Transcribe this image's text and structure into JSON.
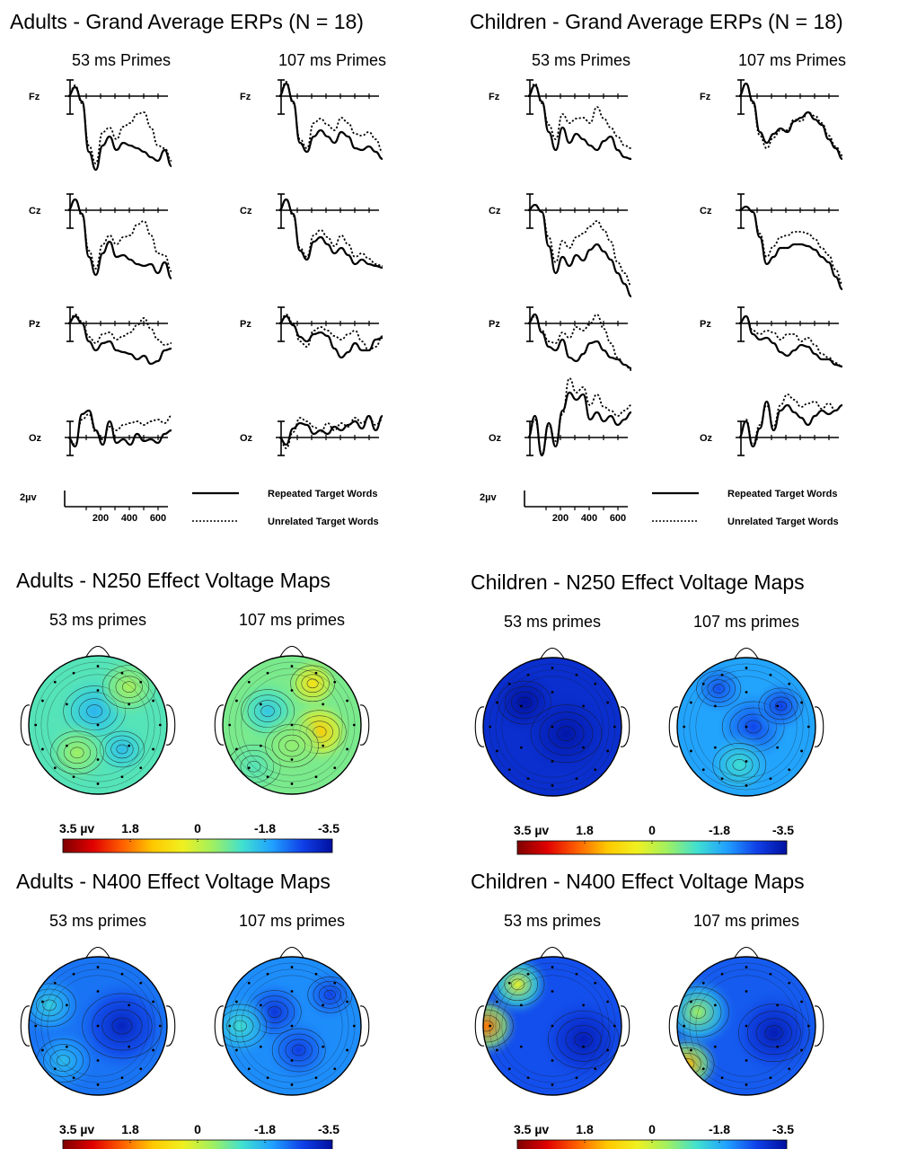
{
  "colors": {
    "scale_stops": [
      "#7f0000",
      "#e00000",
      "#ff6000",
      "#ffc800",
      "#f0f020",
      "#a0f060",
      "#40e0d0",
      "#20a0ff",
      "#1040e8",
      "#0010a0"
    ],
    "line": "#000000",
    "contour": "#1a1a1a"
  },
  "legend": {
    "repeated_label": "Repeated Target Words",
    "unrelated_label": "Unrelated Target Words",
    "amplitude_label": "2µv",
    "time_ticks": [
      "200",
      "400",
      "600"
    ]
  },
  "colorbar": {
    "labels": [
      "3.5 µv",
      "1.8",
      "0",
      "-1.8",
      "-3.5"
    ]
  },
  "chart_data": [
    {
      "type": "line",
      "group": "adults-erp",
      "title": "Adults - Grand Average ERPs (N = 18)",
      "panels": [
        {
          "title": "53 ms Primes",
          "electrodes": [
            {
              "name": "Fz",
              "repeated": [
                0,
                10,
                -6,
                -62,
                -82,
                -55,
                -45,
                -60,
                -52,
                -55,
                -58,
                -62,
                -68,
                -72,
                -60,
                -78
              ],
              "unrelated": [
                0,
                12,
                -8,
                -55,
                -75,
                -40,
                -35,
                -48,
                -34,
                -30,
                -20,
                -18,
                -35,
                -55,
                -58,
                -72
              ]
            },
            {
              "name": "Cz",
              "repeated": [
                0,
                12,
                -4,
                -52,
                -72,
                -48,
                -35,
                -52,
                -50,
                -55,
                -60,
                -62,
                -60,
                -70,
                -58,
                -76
              ],
              "unrelated": [
                0,
                12,
                -6,
                -45,
                -65,
                -38,
                -28,
                -38,
                -30,
                -28,
                -16,
                -12,
                -28,
                -48,
                -50,
                -68
              ]
            },
            {
              "name": "Pz",
              "repeated": [
                0,
                8,
                0,
                -20,
                -30,
                -22,
                -20,
                -30,
                -32,
                -34,
                -40,
                -36,
                -45,
                -42,
                -30,
                -28
              ],
              "unrelated": [
                0,
                10,
                2,
                -15,
                -22,
                -12,
                -10,
                -18,
                -14,
                -10,
                -2,
                6,
                -6,
                -18,
                -24,
                -22
              ]
            },
            {
              "name": "Oz",
              "repeated": [
                0,
                -10,
                26,
                30,
                8,
                -8,
                18,
                -6,
                -2,
                -8,
                4,
                -4,
                -2,
                -6,
                4,
                8
              ],
              "unrelated": [
                0,
                -8,
                20,
                26,
                6,
                -2,
                12,
                8,
                14,
                16,
                18,
                14,
                18,
                20,
                16,
                24
              ]
            }
          ]
        },
        {
          "title": "107 ms Primes",
          "electrodes": [
            {
              "name": "Fz",
              "repeated": [
                0,
                14,
                -6,
                -52,
                -62,
                -45,
                -38,
                -45,
                -52,
                -40,
                -45,
                -58,
                -60,
                -56,
                -62,
                -70
              ],
              "unrelated": [
                0,
                16,
                -8,
                -48,
                -58,
                -30,
                -25,
                -32,
                -38,
                -24,
                -30,
                -42,
                -44,
                -40,
                -48,
                -62
              ]
            },
            {
              "name": "Cz",
              "repeated": [
                0,
                12,
                -4,
                -45,
                -55,
                -35,
                -30,
                -38,
                -48,
                -42,
                -50,
                -60,
                -55,
                -60,
                -62,
                -64
              ],
              "unrelated": [
                0,
                12,
                -6,
                -42,
                -52,
                -28,
                -22,
                -30,
                -40,
                -28,
                -38,
                -52,
                -48,
                -54,
                -60,
                -62
              ]
            },
            {
              "name": "Pz",
              "repeated": [
                0,
                8,
                -2,
                -15,
                -20,
                -12,
                -10,
                -14,
                -28,
                -38,
                -32,
                -22,
                -30,
                -30,
                -18,
                -16
              ],
              "unrelated": [
                0,
                10,
                0,
                -20,
                -26,
                -8,
                -4,
                -8,
                -14,
                -18,
                -12,
                -8,
                -20,
                -30,
                -26,
                -14
              ]
            },
            {
              "name": "Oz",
              "repeated": [
                0,
                -8,
                10,
                16,
                14,
                4,
                8,
                4,
                12,
                8,
                14,
                18,
                10,
                24,
                8,
                24
              ],
              "unrelated": [
                0,
                -12,
                6,
                22,
                18,
                12,
                6,
                16,
                8,
                16,
                12,
                22,
                16,
                22,
                14,
                20
              ]
            }
          ]
        }
      ]
    },
    {
      "type": "line",
      "group": "children-erp",
      "title": "Children - Grand Average ERPs (N = 18)",
      "panels": [
        {
          "title": "53 ms Primes",
          "electrodes": [
            {
              "name": "Fz",
              "repeated": [
                0,
                12,
                -6,
                -40,
                -60,
                -35,
                -52,
                -42,
                -48,
                -55,
                -60,
                -50,
                -45,
                -60,
                -68,
                -70
              ],
              "unrelated": [
                0,
                14,
                -8,
                -32,
                -48,
                -20,
                -30,
                -25,
                -24,
                -30,
                -12,
                -25,
                -35,
                -45,
                -55,
                -58
              ]
            },
            {
              "name": "Cz",
              "repeated": [
                0,
                6,
                -2,
                -40,
                -70,
                -52,
                -62,
                -50,
                -56,
                -44,
                -38,
                -46,
                -55,
                -70,
                -82,
                -96
              ],
              "unrelated": [
                0,
                6,
                -2,
                -30,
                -58,
                -34,
                -42,
                -30,
                -26,
                -18,
                -12,
                -22,
                -35,
                -58,
                -70,
                -84
              ]
            },
            {
              "name": "Pz",
              "repeated": [
                0,
                10,
                -10,
                -26,
                -30,
                -18,
                -38,
                -42,
                -34,
                -22,
                -20,
                -30,
                -38,
                -40,
                -46,
                -50
              ],
              "unrelated": [
                0,
                8,
                -8,
                -20,
                -22,
                -10,
                -16,
                -4,
                -8,
                0,
                10,
                -6,
                -22,
                -38,
                -46,
                -52
              ]
            },
            {
              "name": "Oz",
              "repeated": [
                0,
                24,
                -20,
                16,
                -10,
                30,
                50,
                42,
                48,
                20,
                28,
                18,
                24,
                14,
                20,
                28
              ],
              "unrelated": [
                0,
                20,
                -18,
                14,
                -4,
                26,
                66,
                50,
                56,
                36,
                48,
                34,
                30,
                24,
                30,
                36
              ]
            }
          ]
        },
        {
          "title": "107 ms Primes",
          "electrodes": [
            {
              "name": "Fz",
              "repeated": [
                0,
                14,
                -6,
                -40,
                -52,
                -42,
                -36,
                -40,
                -28,
                -24,
                -18,
                -26,
                -32,
                -48,
                -58,
                -70
              ],
              "unrelated": [
                0,
                14,
                -8,
                -44,
                -58,
                -46,
                -38,
                -38,
                -26,
                -28,
                -18,
                -22,
                -30,
                -44,
                -56,
                -66
              ]
            },
            {
              "name": "Cz",
              "repeated": [
                0,
                4,
                -2,
                -30,
                -60,
                -52,
                -42,
                -42,
                -38,
                -38,
                -40,
                -44,
                -52,
                -58,
                -74,
                -88
              ],
              "unrelated": [
                0,
                4,
                -2,
                -26,
                -52,
                -40,
                -30,
                -28,
                -24,
                -24,
                -26,
                -32,
                -42,
                -50,
                -66,
                -82
              ]
            },
            {
              "name": "Pz",
              "repeated": [
                0,
                8,
                -12,
                -18,
                -16,
                -22,
                -32,
                -36,
                -30,
                -24,
                -26,
                -34,
                -40,
                -40,
                -46,
                -48
              ],
              "unrelated": [
                0,
                8,
                -8,
                -12,
                -8,
                -10,
                -18,
                -12,
                -12,
                -20,
                -16,
                -24,
                -34,
                -38,
                -44,
                -48
              ]
            },
            {
              "name": "Oz",
              "repeated": [
                0,
                18,
                -10,
                10,
                40,
                8,
                30,
                36,
                28,
                22,
                14,
                24,
                30,
                26,
                30,
                36
              ],
              "unrelated": [
                0,
                20,
                -8,
                14,
                36,
                12,
                36,
                48,
                42,
                34,
                38,
                40,
                32,
                38,
                30,
                36
              ]
            }
          ]
        }
      ]
    },
    {
      "type": "heatmap",
      "group": "adults-n250",
      "title": "Adults - N250 Effect Voltage Maps",
      "maps": [
        {
          "title": "53 ms primes",
          "base": -1.0,
          "blobs": [
            {
              "u": -0.2,
              "v": -0.05,
              "val": -1.7,
              "r": 0.35
            },
            {
              "u": 0.35,
              "v": 0.35,
              "val": -1.6,
              "r": 0.25
            },
            {
              "u": 0.4,
              "v": -0.3,
              "val": -0.4,
              "r": 0.3
            },
            {
              "u": -0.55,
              "v": 0.45,
              "val": -0.3,
              "r": 0.3
            }
          ]
        },
        {
          "title": "107 ms primes",
          "base": -0.7,
          "blobs": [
            {
              "u": 0.1,
              "v": 0.4,
              "val": 1.1,
              "r": 0.3
            },
            {
              "u": -0.6,
              "v": 0.3,
              "val": 0.7,
              "r": 0.25
            },
            {
              "u": 0.6,
              "v": -0.55,
              "val": -1.0,
              "r": 0.3
            },
            {
              "u": -0.2,
              "v": -0.35,
              "val": -1.5,
              "r": 0.3
            },
            {
              "u": 0.3,
              "v": 0.0,
              "val": -0.5,
              "r": 0.3
            }
          ]
        }
      ]
    },
    {
      "type": "heatmap",
      "group": "children-n250",
      "title": "Children - N250 Effect Voltage Maps",
      "maps": [
        {
          "title": "53 ms primes",
          "base": -3.0,
          "blobs": [
            {
              "u": -0.35,
              "v": -0.4,
              "val": -3.5,
              "r": 0.3
            },
            {
              "u": 0.1,
              "v": 0.2,
              "val": -3.4,
              "r": 0.4
            }
          ]
        },
        {
          "title": "107 ms primes",
          "base": -1.9,
          "blobs": [
            {
              "u": 0.0,
              "v": 0.1,
              "val": -2.7,
              "r": 0.35
            },
            {
              "u": -0.3,
              "v": 0.5,
              "val": -2.8,
              "r": 0.25
            },
            {
              "u": 0.55,
              "v": -0.1,
              "val": -1.2,
              "r": 0.3
            },
            {
              "u": -0.55,
              "v": -0.4,
              "val": -2.6,
              "r": 0.25
            }
          ]
        }
      ]
    },
    {
      "type": "heatmap",
      "group": "adults-n400",
      "title": "Adults - N400 Effect Voltage Maps",
      "maps": [
        {
          "title": "53 ms primes",
          "base": -2.3,
          "blobs": [
            {
              "u": 0.0,
              "v": 0.35,
              "val": -3.2,
              "r": 0.45
            },
            {
              "u": -0.3,
              "v": -0.7,
              "val": -1.4,
              "r": 0.3
            },
            {
              "u": 0.5,
              "v": -0.5,
              "val": -1.6,
              "r": 0.3
            }
          ]
        },
        {
          "title": "107 ms primes",
          "base": -2.1,
          "blobs": [
            {
              "u": -0.2,
              "v": -0.25,
              "val": -2.9,
              "r": 0.3
            },
            {
              "u": 0.35,
              "v": 0.1,
              "val": -2.8,
              "r": 0.3
            },
            {
              "u": -0.45,
              "v": 0.55,
              "val": -2.7,
              "r": 0.25
            },
            {
              "u": 0.0,
              "v": -0.75,
              "val": -1.2,
              "r": 0.3
            }
          ]
        }
      ]
    },
    {
      "type": "heatmap",
      "group": "children-n400",
      "title": "Children - N400 Effect Voltage Maps",
      "maps": [
        {
          "title": "53 ms primes",
          "base": -2.6,
          "blobs": [
            {
              "u": 0.0,
              "v": -0.95,
              "val": 1.8,
              "r": 0.3
            },
            {
              "u": -0.6,
              "v": -0.5,
              "val": 0.3,
              "r": 0.3
            },
            {
              "u": 0.2,
              "v": 0.45,
              "val": -3.3,
              "r": 0.4
            }
          ]
        },
        {
          "title": "107 ms primes",
          "base": -2.5,
          "blobs": [
            {
              "u": 0.55,
              "v": -0.85,
              "val": 1.3,
              "r": 0.3
            },
            {
              "u": -0.2,
              "v": -0.7,
              "val": -0.4,
              "r": 0.35
            },
            {
              "u": 0.1,
              "v": 0.4,
              "val": -3.3,
              "r": 0.4
            }
          ]
        }
      ]
    }
  ]
}
